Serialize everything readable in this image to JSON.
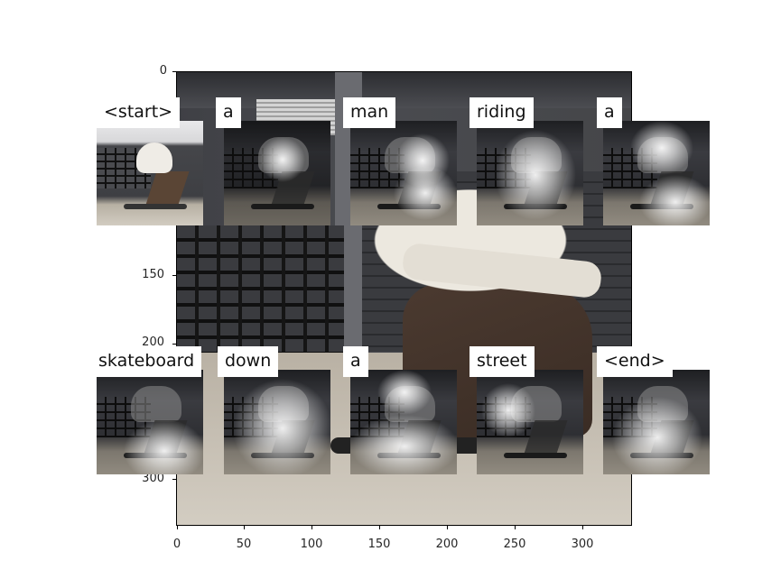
{
  "figure": {
    "y_ticks": [
      "0",
      "150",
      "200",
      "300"
    ],
    "x_ticks": [
      "0",
      "50",
      "100",
      "150",
      "200",
      "250",
      "300"
    ]
  },
  "caption_words": [
    "<start>",
    "a",
    "man",
    "riding",
    "a",
    "skateboard",
    "down",
    "a",
    "street",
    "<end>"
  ]
}
